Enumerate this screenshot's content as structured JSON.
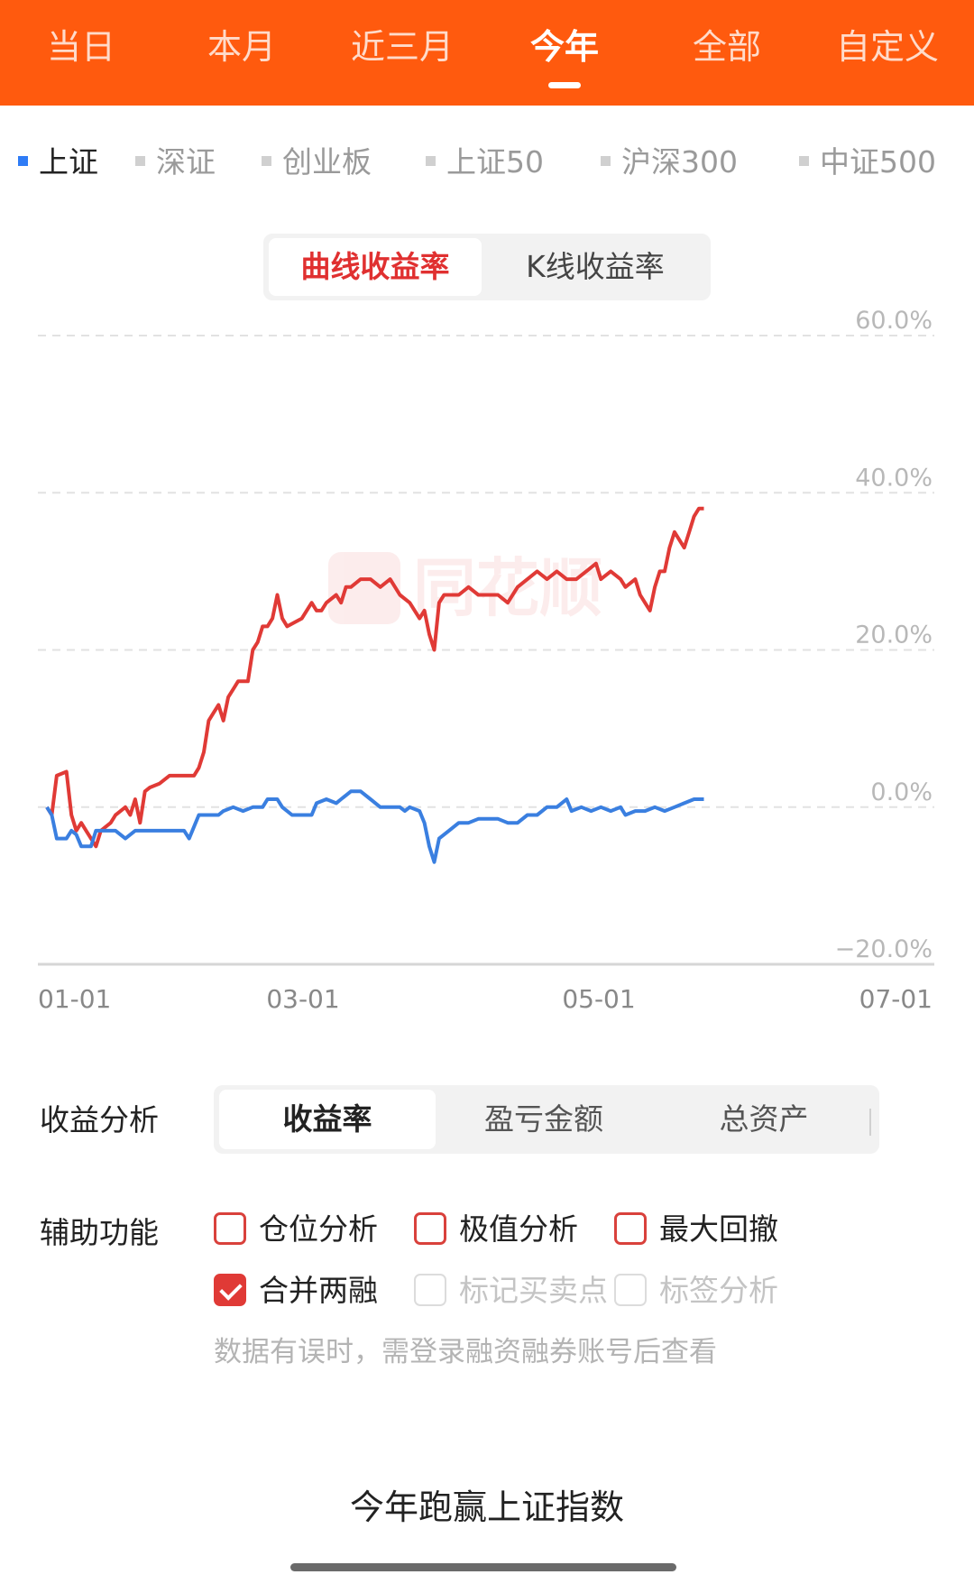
{
  "top_tabs": [
    {
      "label": "当日",
      "active": false
    },
    {
      "label": "本月",
      "active": false
    },
    {
      "label": "近三月",
      "active": false
    },
    {
      "label": "今年",
      "active": true
    },
    {
      "label": "全部",
      "active": false
    },
    {
      "label": "自定义",
      "active": false
    }
  ],
  "indices": [
    {
      "label": "上证",
      "active": true
    },
    {
      "label": "深证",
      "active": false
    },
    {
      "label": "创业板",
      "active": false
    },
    {
      "label": "上证50",
      "active": false
    },
    {
      "label": "沪深300",
      "active": false
    },
    {
      "label": "中证500",
      "active": false
    }
  ],
  "chart_toggle": {
    "curve": "曲线收益率",
    "kline": "K线收益率",
    "active": "curve"
  },
  "analysis": {
    "label": "收益分析",
    "options": [
      "收益率",
      "盈亏金额",
      "总资产"
    ],
    "active_index": 0
  },
  "aux": {
    "label": "辅助功能",
    "options": [
      {
        "label": "仓位分析",
        "checked": false,
        "disabled": false
      },
      {
        "label": "极值分析",
        "checked": false,
        "disabled": false
      },
      {
        "label": "最大回撤",
        "checked": false,
        "disabled": false
      },
      {
        "label": "合并两融",
        "checked": true,
        "disabled": false
      },
      {
        "label": "标记买卖点",
        "checked": false,
        "disabled": true
      },
      {
        "label": "标签分析",
        "checked": false,
        "disabled": true
      }
    ],
    "note": "数据有误时，需登录融资融券账号后查看"
  },
  "footer": "今年跑赢上证指数",
  "watermark": "同花顺",
  "colors": {
    "accent": "#ff5a0e",
    "portfolio": "#e03a36",
    "index": "#3a7fe0"
  },
  "chart_data": {
    "type": "line",
    "x_tick_labels": [
      "01-01",
      "03-01",
      "05-01",
      "07-01"
    ],
    "y_tick_labels": [
      "60.0%",
      "40.0%",
      "20.0%",
      "0.0%",
      "−20.0%"
    ],
    "ylim": [
      -20,
      60
    ],
    "xlim_days": [
      0,
      181
    ],
    "grid": true,
    "series": [
      {
        "color": "#e03a36",
        "points": [
          [
            0,
            0
          ],
          [
            1,
            -1
          ],
          [
            2,
            4
          ],
          [
            4,
            4.5
          ],
          [
            5,
            -1
          ],
          [
            6,
            -3
          ],
          [
            7,
            -2
          ],
          [
            8,
            -3
          ],
          [
            10,
            -5
          ],
          [
            11,
            -3
          ],
          [
            13,
            -2
          ],
          [
            14,
            -1
          ],
          [
            16,
            0
          ],
          [
            17,
            -1
          ],
          [
            18,
            1
          ],
          [
            19,
            -2
          ],
          [
            20,
            2
          ],
          [
            21,
            2.5
          ],
          [
            23,
            3
          ],
          [
            25,
            4
          ],
          [
            30,
            4
          ],
          [
            31,
            5
          ],
          [
            32,
            7
          ],
          [
            33,
            11
          ],
          [
            34,
            12
          ],
          [
            35,
            13
          ],
          [
            36,
            11
          ],
          [
            37,
            14
          ],
          [
            38,
            15
          ],
          [
            39,
            16
          ],
          [
            41,
            16
          ],
          [
            42,
            20
          ],
          [
            43,
            21
          ],
          [
            44,
            23
          ],
          [
            45,
            23
          ],
          [
            46,
            24
          ],
          [
            47,
            27
          ],
          [
            48,
            24
          ],
          [
            49,
            23
          ],
          [
            52,
            24
          ],
          [
            53,
            25
          ],
          [
            54,
            26
          ],
          [
            55,
            25
          ],
          [
            56,
            25
          ],
          [
            57,
            26
          ],
          [
            59,
            27
          ],
          [
            60,
            26
          ],
          [
            61,
            28
          ],
          [
            62,
            28
          ],
          [
            64,
            29
          ],
          [
            66,
            29
          ],
          [
            68,
            28
          ],
          [
            70,
            29
          ],
          [
            72,
            27
          ],
          [
            74,
            26
          ],
          [
            76,
            24
          ],
          [
            77,
            25
          ],
          [
            78,
            22
          ],
          [
            79,
            20
          ],
          [
            80,
            26
          ],
          [
            81,
            27
          ],
          [
            84,
            27
          ],
          [
            86,
            28
          ],
          [
            88,
            27
          ],
          [
            90,
            27
          ],
          [
            92,
            27
          ],
          [
            94,
            26
          ],
          [
            96,
            28
          ],
          [
            98,
            29
          ],
          [
            100,
            30
          ],
          [
            102,
            29
          ],
          [
            104,
            30
          ],
          [
            106,
            29
          ],
          [
            108,
            29
          ],
          [
            110,
            30
          ],
          [
            112,
            31
          ],
          [
            113,
            29
          ],
          [
            115,
            30
          ],
          [
            117,
            29
          ],
          [
            118,
            28
          ],
          [
            120,
            29
          ],
          [
            121,
            27
          ],
          [
            122,
            26
          ],
          [
            123,
            25
          ],
          [
            124,
            28
          ],
          [
            125,
            30
          ],
          [
            126,
            30
          ],
          [
            127,
            33
          ],
          [
            128,
            35
          ],
          [
            130,
            33
          ],
          [
            131,
            35
          ],
          [
            132,
            37
          ],
          [
            133,
            38
          ],
          [
            134,
            38
          ]
        ]
      },
      {
        "color": "#3a7fe0",
        "points": [
          [
            0,
            0
          ],
          [
            1,
            -1
          ],
          [
            2,
            -4
          ],
          [
            4,
            -4
          ],
          [
            5,
            -3
          ],
          [
            6,
            -3.5
          ],
          [
            7,
            -5
          ],
          [
            9,
            -5
          ],
          [
            10,
            -3
          ],
          [
            12,
            -3
          ],
          [
            14,
            -3
          ],
          [
            16,
            -4
          ],
          [
            18,
            -3
          ],
          [
            20,
            -3
          ],
          [
            28,
            -3
          ],
          [
            29,
            -4
          ],
          [
            31,
            -1
          ],
          [
            33,
            -1
          ],
          [
            35,
            -1
          ],
          [
            36,
            -0.5
          ],
          [
            38,
            0
          ],
          [
            40,
            -0.5
          ],
          [
            42,
            0
          ],
          [
            44,
            0
          ],
          [
            45,
            1
          ],
          [
            47,
            1
          ],
          [
            48,
            0
          ],
          [
            50,
            -1
          ],
          [
            52,
            -1
          ],
          [
            54,
            -1
          ],
          [
            55,
            0.5
          ],
          [
            57,
            1
          ],
          [
            59,
            0.5
          ],
          [
            60,
            1
          ],
          [
            62,
            2
          ],
          [
            64,
            2
          ],
          [
            66,
            1
          ],
          [
            68,
            0
          ],
          [
            70,
            0
          ],
          [
            72,
            0
          ],
          [
            73,
            -0.5
          ],
          [
            74,
            0
          ],
          [
            76,
            -0.5
          ],
          [
            77,
            -2
          ],
          [
            78,
            -5
          ],
          [
            79,
            -7
          ],
          [
            80,
            -4
          ],
          [
            82,
            -3
          ],
          [
            84,
            -2
          ],
          [
            86,
            -2
          ],
          [
            88,
            -1.5
          ],
          [
            90,
            -1.5
          ],
          [
            92,
            -1.5
          ],
          [
            94,
            -2
          ],
          [
            96,
            -2
          ],
          [
            98,
            -1
          ],
          [
            100,
            -1
          ],
          [
            102,
            0
          ],
          [
            104,
            0
          ],
          [
            106,
            1
          ],
          [
            107,
            -0.5
          ],
          [
            109,
            0
          ],
          [
            111,
            -0.5
          ],
          [
            113,
            0
          ],
          [
            115,
            -0.5
          ],
          [
            117,
            0
          ],
          [
            118,
            -1
          ],
          [
            120,
            -0.5
          ],
          [
            122,
            -0.5
          ],
          [
            124,
            0
          ],
          [
            126,
            -0.5
          ],
          [
            128,
            0
          ],
          [
            130,
            0.5
          ],
          [
            132,
            1
          ],
          [
            134,
            1
          ]
        ]
      }
    ]
  }
}
